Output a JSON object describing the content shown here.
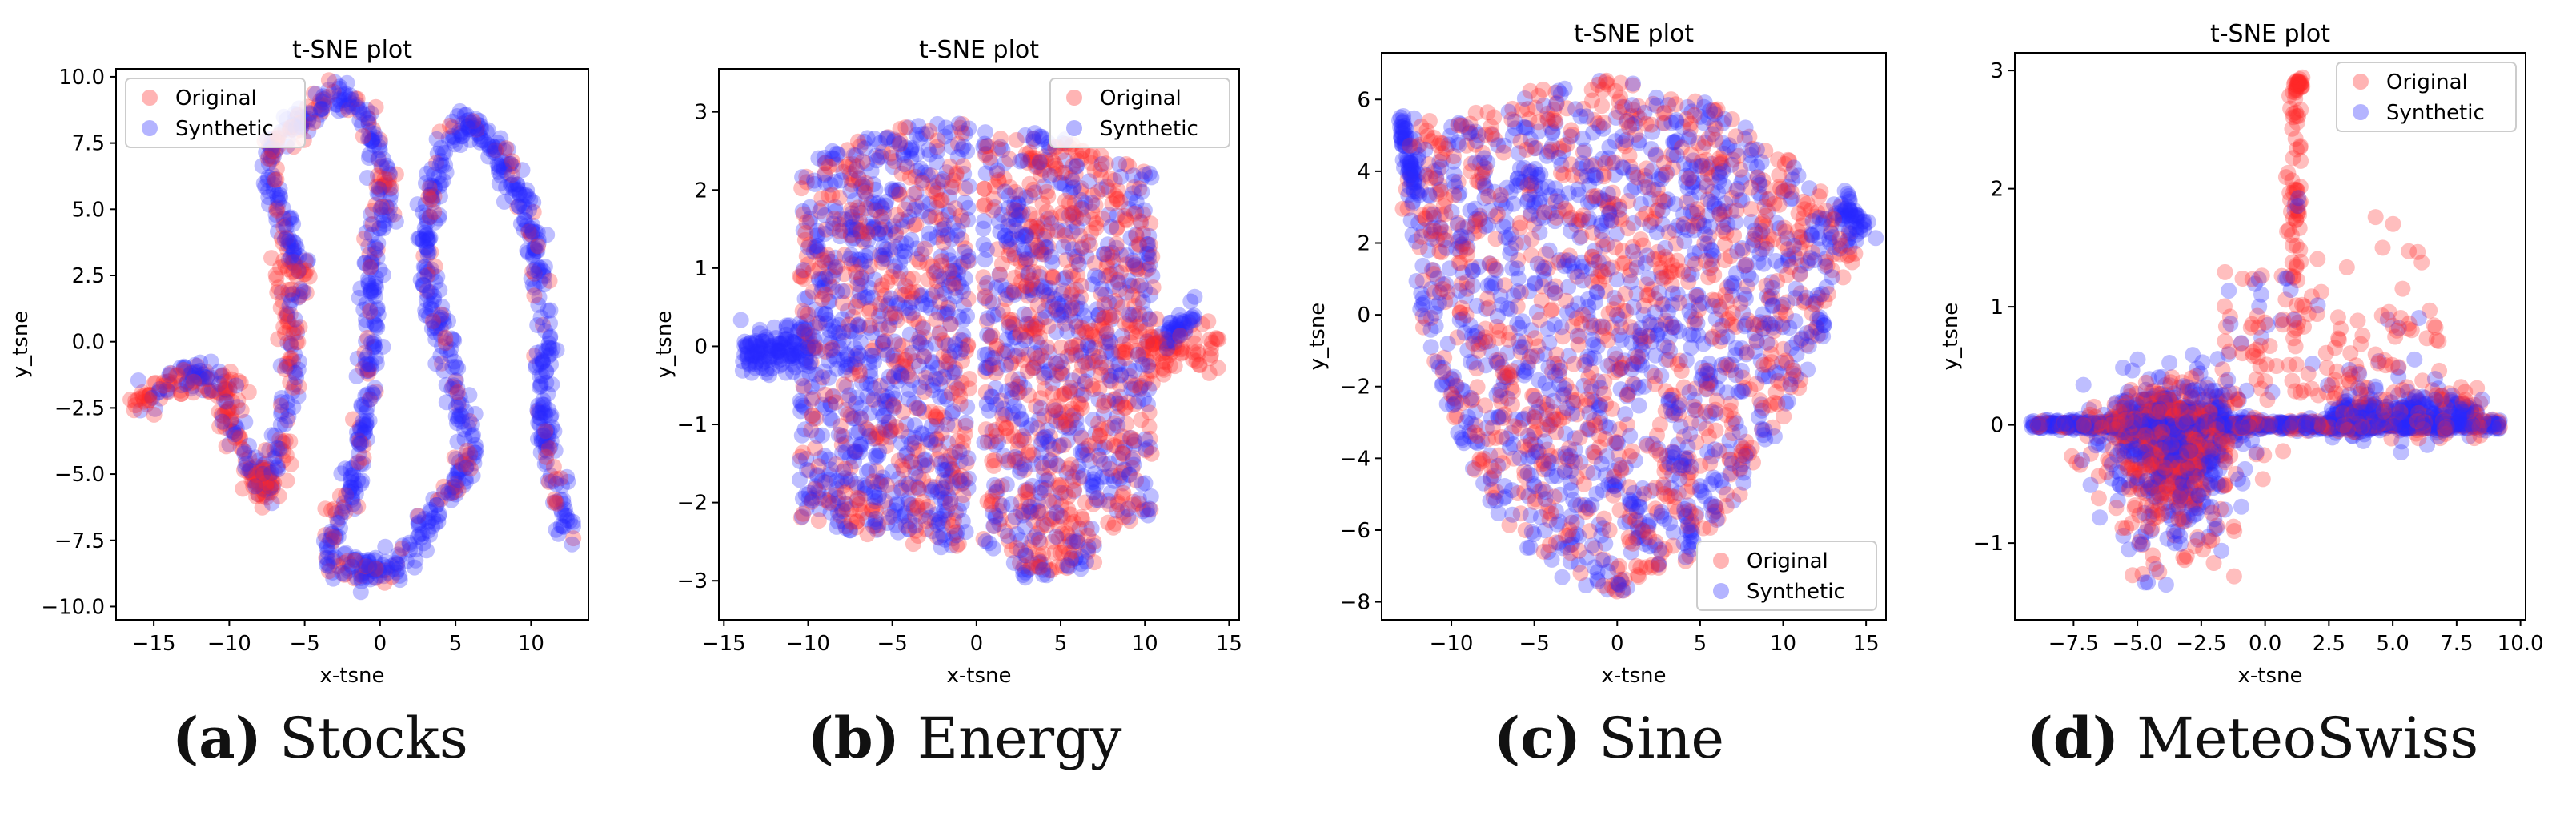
{
  "chart_data": [
    {
      "type": "scatter",
      "panel": "Stocks",
      "label_letter": "a",
      "title": "t-SNE plot",
      "xlabel": "x-tsne",
      "ylabel": "y_tsne",
      "xlim": [
        -17.5,
        13.8
      ],
      "ylim": [
        -10.5,
        10.3
      ],
      "xticks": [
        -15,
        -10,
        -5,
        0,
        5,
        10
      ],
      "yticks": [
        -10.0,
        -7.5,
        -5.0,
        -2.5,
        0.0,
        2.5,
        5.0,
        7.5,
        10.0
      ],
      "ytick_decimals": 1,
      "legend_position": "top-left",
      "series": [
        {
          "name": "Original",
          "color": "#ff0000"
        },
        {
          "name": "Synthetic",
          "color": "#0000ff"
        }
      ],
      "shape": "curve",
      "path": [
        [
          -16,
          -2.3
        ],
        [
          -14.5,
          -1.8
        ],
        [
          -12.5,
          -1.2
        ],
        [
          -11.2,
          -1.4
        ],
        [
          -10.3,
          -2.2
        ],
        [
          -9.8,
          -3.2
        ],
        [
          -9.3,
          -4.3
        ],
        [
          -8.3,
          -4.9
        ],
        [
          -7.3,
          -5.8
        ],
        [
          -7,
          -5
        ],
        [
          -6.5,
          -3.5
        ],
        [
          -6,
          -1
        ],
        [
          -5.8,
          1.5
        ],
        [
          -5.3,
          3
        ],
        [
          -6.2,
          4
        ],
        [
          -6.8,
          5.5
        ],
        [
          -7.5,
          7
        ],
        [
          -6.3,
          8
        ],
        [
          -4.5,
          8.8
        ],
        [
          -3.2,
          9.3
        ],
        [
          -2,
          9.2
        ],
        [
          -1,
          8.5
        ],
        [
          -0.3,
          7.3
        ],
        [
          0.3,
          6
        ],
        [
          0,
          4.5
        ],
        [
          -0.5,
          3
        ],
        [
          -0.5,
          1
        ],
        [
          -0.7,
          -0.5
        ],
        [
          -0.8,
          -2
        ],
        [
          -1.5,
          -4
        ],
        [
          -2,
          -6
        ],
        [
          -3.2,
          -7
        ],
        [
          -3.6,
          -8
        ],
        [
          -2.5,
          -8.7
        ],
        [
          -1,
          -8.7
        ],
        [
          0.8,
          -8.5
        ],
        [
          2.5,
          -7.5
        ],
        [
          3.8,
          -6.2
        ],
        [
          5,
          -5.5
        ],
        [
          6,
          -4
        ],
        [
          5.5,
          -2.8
        ],
        [
          5,
          -1.5
        ],
        [
          4.3,
          -0.3
        ],
        [
          3.5,
          1.5
        ],
        [
          3,
          3.5
        ],
        [
          3.3,
          5.5
        ],
        [
          4,
          7.2
        ],
        [
          5,
          8
        ],
        [
          6.2,
          8.2
        ],
        [
          7.6,
          7.2
        ],
        [
          8.8,
          6
        ],
        [
          10,
          4.5
        ],
        [
          10.2,
          3
        ],
        [
          10.7,
          1.5
        ],
        [
          11.2,
          0
        ],
        [
          10.6,
          -1.2
        ],
        [
          10.8,
          -3
        ],
        [
          11.4,
          -4.8
        ],
        [
          12.4,
          -7.1
        ]
      ],
      "clusters": [],
      "redSpots": [
        [
          -8,
          -5,
          1.3,
          28
        ],
        [
          -10,
          -2,
          1.0,
          20
        ],
        [
          -6.2,
          2.5,
          0.9,
          15
        ],
        [
          0.2,
          6,
          0.7,
          12
        ],
        [
          -15.5,
          -2.1,
          0.8,
          10
        ]
      ],
      "spread": 0.35,
      "n": 1300,
      "seed": 11
    },
    {
      "type": "scatter",
      "panel": "Energy",
      "label_letter": "b",
      "title": "t-SNE plot",
      "xlabel": "x-tsne",
      "ylabel": "y_tsne",
      "xlim": [
        -15.3,
        15.6
      ],
      "ylim": [
        -3.5,
        3.55
      ],
      "xticks": [
        -15,
        -10,
        -5,
        0,
        5,
        10,
        15
      ],
      "yticks": [
        -3,
        -2,
        -1,
        0,
        1,
        2,
        3
      ],
      "ytick_decimals": 0,
      "legend_position": "top-right",
      "series": [
        {
          "name": "Original",
          "color": "#ff0000"
        },
        {
          "name": "Synthetic",
          "color": "#0000ff"
        }
      ],
      "shape": "blob",
      "blob": {
        "xmin": -10.5,
        "xmax": 10.5,
        "ytop": 2.8,
        "ybot": -2.6,
        "gap": 0.4
      },
      "tails": [
        [
          -14,
          -0.05,
          -10,
          0.0,
          0.15,
          120,
          "b"
        ],
        [
          10,
          -0.1,
          14.5,
          0.0,
          0.15,
          60,
          "r"
        ],
        [
          11,
          0.1,
          13,
          0.4,
          0.1,
          40,
          "b"
        ]
      ],
      "n": 2200,
      "seed": 23
    },
    {
      "type": "scatter",
      "panel": "Sine",
      "label_letter": "c",
      "title": "t-SNE plot",
      "xlabel": "x-tsne",
      "ylabel": "y_tsne",
      "xlim": [
        -14.2,
        16.2
      ],
      "ylim": [
        -8.5,
        7.3
      ],
      "xticks": [
        -10,
        -5,
        0,
        5,
        10,
        15
      ],
      "yticks": [
        -8,
        -6,
        -4,
        -2,
        0,
        2,
        4,
        6
      ],
      "ytick_decimals": 0,
      "legend_position": "bottom-right",
      "series": [
        {
          "name": "Original",
          "color": "#ff0000"
        },
        {
          "name": "Synthetic",
          "color": "#0000ff"
        }
      ],
      "shape": "poly",
      "poly": [
        [
          -13,
          5.5
        ],
        [
          -10,
          5.5
        ],
        [
          -6,
          6.2
        ],
        [
          0,
          6.6
        ],
        [
          5,
          6
        ],
        [
          9,
          5
        ],
        [
          13,
          3.2
        ],
        [
          15,
          2.5
        ],
        [
          13,
          0
        ],
        [
          10,
          -3
        ],
        [
          7,
          -5.5
        ],
        [
          4,
          -7
        ],
        [
          0,
          -7.8
        ],
        [
          -3,
          -7.5
        ],
        [
          -6,
          -6.3
        ],
        [
          -8,
          -5
        ],
        [
          -10,
          -3
        ],
        [
          -12,
          0
        ],
        [
          -13,
          3
        ]
      ],
      "tails": [
        [
          -13,
          5.5,
          -12.2,
          3.5,
          0.15,
          60,
          "b"
        ],
        [
          13.5,
          3,
          15,
          2.5,
          0.2,
          40,
          "b"
        ]
      ],
      "n": 2000,
      "seed": 37
    },
    {
      "type": "scatter",
      "panel": "MeteoSwiss",
      "label_letter": "d",
      "title": "t-SNE plot",
      "xlabel": "x-tsne",
      "ylabel": "y_tsne",
      "xlim": [
        -9.8,
        10.2
      ],
      "ylim": [
        -1.65,
        3.15
      ],
      "xticks": [
        -7.5,
        -5.0,
        -2.5,
        0.0,
        2.5,
        5.0,
        7.5,
        10.0
      ],
      "yticks": [
        -1,
        0,
        1,
        2,
        3
      ],
      "ytick_decimals": 0,
      "xtick_decimals": 1,
      "legend_position": "top-right",
      "series": [
        {
          "name": "Original",
          "color": "#ff0000"
        },
        {
          "name": "Synthetic",
          "color": "#0000ff"
        }
      ],
      "shape": "meteo",
      "n": 2600,
      "seed": 53
    }
  ],
  "captions": [
    {
      "letter": "(a)",
      "name": " Stocks"
    },
    {
      "letter": "(b)",
      "name": " Energy"
    },
    {
      "letter": "(c)",
      "name": " Sine"
    },
    {
      "letter": "(d)",
      "name": " MeteoSwiss"
    }
  ]
}
